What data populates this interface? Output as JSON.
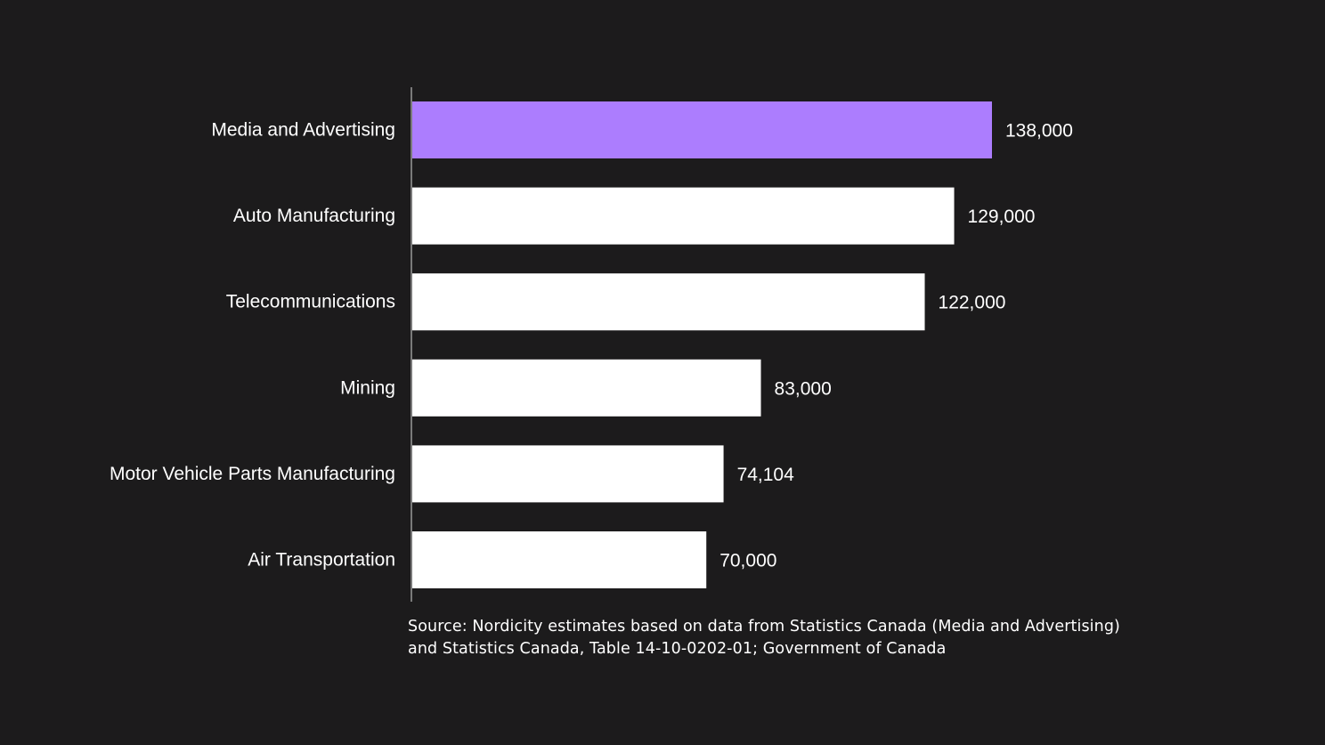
{
  "colors": {
    "background": "#1c1b1c",
    "highlight_bar": "#ac7dfe",
    "default_bar": "#ffffff",
    "axis": "#9a9a9a",
    "text": "#ffffff"
  },
  "chart_data": {
    "type": "bar",
    "orientation": "horizontal",
    "categories": [
      "Media and Advertising",
      "Auto Manufacturing",
      "Telecommunications",
      "Mining",
      "Motor Vehicle Parts Manufacturing",
      "Air Transportation"
    ],
    "values": [
      138000,
      129000,
      122000,
      83000,
      74104,
      70000
    ],
    "value_labels": [
      "138,000",
      "129,000",
      "122,000",
      "83,000",
      "74,104",
      "70,000"
    ],
    "highlighted_category": "Media and Advertising",
    "xlim": [
      0,
      138000
    ],
    "grid": false,
    "legend": "none"
  },
  "source": {
    "line1": "Source: Nordicity estimates based on data from Statistics Canada (Media and Advertising)",
    "line2": "and Statistics Canada, Table 14-10-0202-01; Government of Canada"
  }
}
